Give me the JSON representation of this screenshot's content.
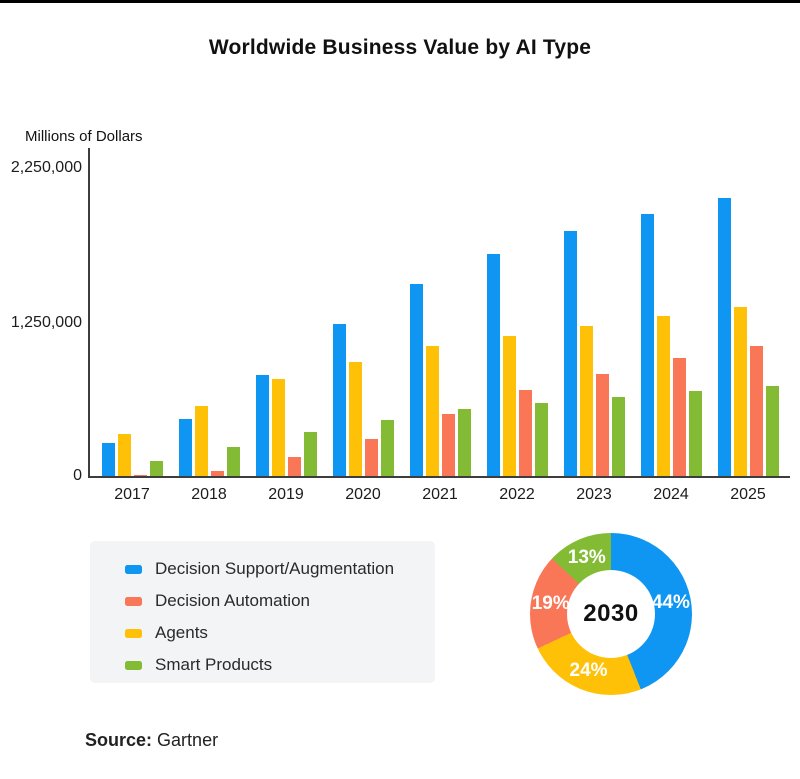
{
  "title": "Worldwide Business Value by AI Type",
  "colors": {
    "blue": "#0e96f2",
    "yellow": "#ffc107",
    "salmon": "#f97757",
    "green": "#84bb34",
    "legend_bg": "#f3f4f6",
    "axis": "#3d3d3d"
  },
  "chart_data": [
    {
      "type": "bar",
      "title": "Worldwide Business Value by AI Type",
      "unit_label": "Millions of Dollars",
      "xlabel": "",
      "ylabel": "Millions of Dollars",
      "ylim": [
        0,
        2250000
      ],
      "grid": false,
      "y_ticks": [
        "0",
        "1,250,000",
        "2,250,000"
      ],
      "y_tick_values": [
        0,
        1250000,
        2250000
      ],
      "categories": [
        "2017",
        "2018",
        "2019",
        "2020",
        "2021",
        "2022",
        "2023",
        "2024",
        "2025"
      ],
      "series": [
        {
          "name": "Decision Support/Augmentation",
          "color_key": "blue",
          "values": [
            240000,
            420000,
            735000,
            1110000,
            1405000,
            1625000,
            1790000,
            1915000,
            2030000
          ]
        },
        {
          "name": "Agents",
          "color_key": "yellow",
          "values": [
            310000,
            515000,
            705000,
            835000,
            950000,
            1020000,
            1095000,
            1170000,
            1235000
          ]
        },
        {
          "name": "Decision Automation",
          "color_key": "salmon",
          "values": [
            10000,
            35000,
            140000,
            270000,
            450000,
            630000,
            745000,
            865000,
            950000
          ]
        },
        {
          "name": "Smart Products",
          "color_key": "green",
          "values": [
            110000,
            215000,
            320000,
            410000,
            490000,
            530000,
            580000,
            620000,
            660000
          ]
        }
      ]
    },
    {
      "type": "pie",
      "subtype": "donut",
      "center_label": "2030",
      "legend_position": "none",
      "slices": [
        {
          "label": "Decision Support/Augmentation",
          "pct": 44,
          "display": "44%",
          "color_key": "blue"
        },
        {
          "label": "Agents",
          "pct": 24,
          "display": "24%",
          "color_key": "yellow"
        },
        {
          "label": "Decision Automation",
          "pct": 19,
          "display": "19%",
          "color_key": "salmon"
        },
        {
          "label": "Smart Products",
          "pct": 13,
          "display": "13%",
          "color_key": "green"
        }
      ]
    }
  ],
  "legend": {
    "items": [
      {
        "label": "Decision Support/Augmentation",
        "color_key": "blue"
      },
      {
        "label": "Decision Automation",
        "color_key": "salmon"
      },
      {
        "label": "Agents",
        "color_key": "yellow"
      },
      {
        "label": "Smart Products",
        "color_key": "green"
      }
    ]
  },
  "source": {
    "label": "Source:",
    "value": "Gartner"
  }
}
